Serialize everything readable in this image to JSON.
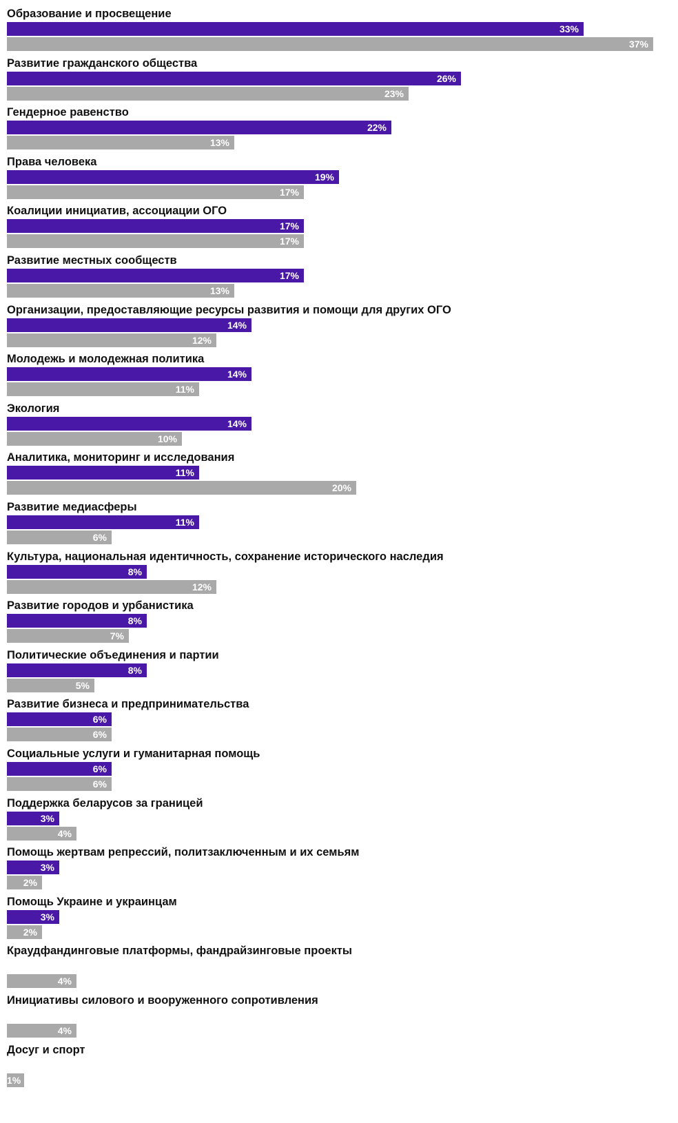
{
  "chart_data": {
    "type": "bar",
    "orientation": "horizontal",
    "title": "",
    "xlabel": "",
    "ylabel": "",
    "xlim": [
      0,
      37
    ],
    "grid": false,
    "legend": "none",
    "colors": {
      "series_1": "#4a18a6",
      "series_2": "#a9a9a9",
      "value_label": "#ffffff",
      "category_label": "#111111"
    },
    "categories": [
      "Образование и просвещение",
      "Развитие гражданского общества",
      "Гендерное равенство",
      "Права человека",
      "Коалиции инициатив, ассоциации ОГО",
      "Развитие местных сообществ",
      "Организации, предоставляющие ресурсы развития и помощи для других ОГО",
      "Молодежь и молодежная политика",
      "Экология",
      "Аналитика, мониторинг и исследования",
      "Развитие медиасферы",
      "Культура, национальная идентичность, сохранение исторического наследия",
      "Развитие городов и урбанистика",
      "Политические объединения и партии",
      "Развитие бизнеса и предпринимательства",
      "Социальные услуги и гуманитарная помощь",
      "Поддержка беларусов за границей",
      "Помощь жертвам репрессий, политзаключенным и их семьям",
      "Помощь Украине и украинцам",
      "Краудфандинговые платформы, фандрайзинговые проекты",
      "Инициативы силового и вооруженного сопротивления",
      "Досуг и спорт"
    ],
    "series": [
      {
        "color": "#4a18a6",
        "values": [
          33,
          26,
          22,
          19,
          17,
          17,
          14,
          14,
          14,
          11,
          11,
          8,
          8,
          8,
          6,
          6,
          3,
          3,
          3,
          null,
          null,
          null
        ],
        "labels": [
          "33%",
          "26%",
          "22%",
          "19%",
          "17%",
          "17%",
          "14%",
          "14%",
          "14%",
          "11%",
          "11%",
          "8%",
          "8%",
          "8%",
          "6%",
          "6%",
          "3%",
          "3%",
          "3%",
          "",
          "",
          ""
        ]
      },
      {
        "color": "#a9a9a9",
        "values": [
          37,
          23,
          13,
          17,
          17,
          13,
          12,
          11,
          10,
          20,
          6,
          12,
          7,
          5,
          6,
          6,
          4,
          2,
          2,
          4,
          4,
          1
        ],
        "labels": [
          "37%",
          "23%",
          "13%",
          "17%",
          "17%",
          "13%",
          "12%",
          "11%",
          "10%",
          "20%",
          "6%",
          "12%",
          "7%",
          "5%",
          "6%",
          "6%",
          "4%",
          "2%",
          "2%",
          "4%",
          "4%",
          "1%"
        ]
      }
    ]
  }
}
